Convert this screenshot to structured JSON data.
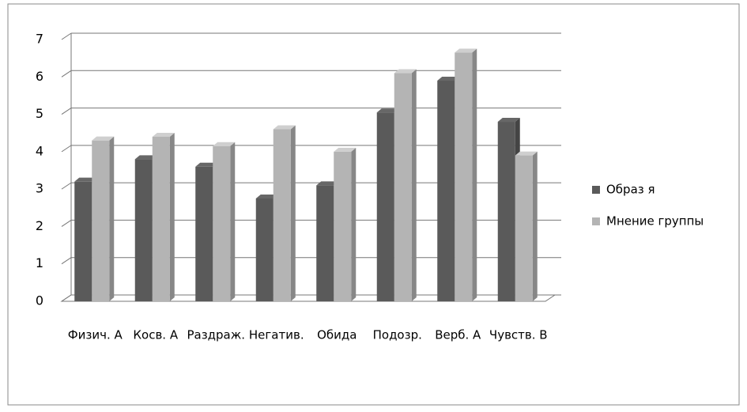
{
  "chart_data": {
    "type": "bar3d",
    "categories": [
      "Физич. А",
      "Косв. А",
      "Раздраж.",
      "Негатив.",
      "Обида",
      "Подозр.",
      "Верб. А",
      "Чувств. В"
    ],
    "series": [
      {
        "name": "Образ я",
        "color": "#5a5a5a",
        "values": [
          3.2,
          3.8,
          3.6,
          2.75,
          3.1,
          5.05,
          5.9,
          4.8
        ]
      },
      {
        "name": "Мнение группы",
        "color": "#b4b4b4",
        "values": [
          4.3,
          4.4,
          4.15,
          4.6,
          4.0,
          6.1,
          6.65,
          3.9
        ]
      }
    ],
    "ylim": [
      0,
      7
    ],
    "yticks": [
      0,
      1,
      2,
      3,
      4,
      5,
      6,
      7
    ],
    "grid": true,
    "legend": "right"
  }
}
